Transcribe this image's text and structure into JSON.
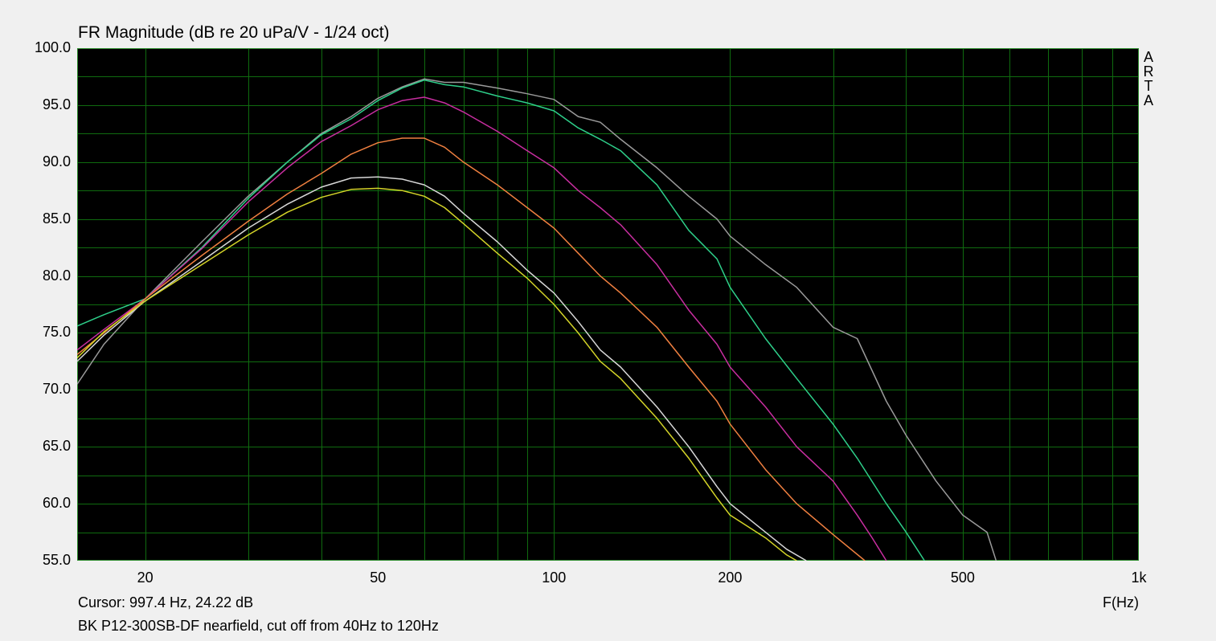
{
  "chart_data": {
    "type": "line",
    "title": "FR Magnitude (dB re 20 uPa/V - 1/24 oct)",
    "xlabel": "F(Hz)",
    "ylabel": "",
    "xscale": "log",
    "xlim": [
      15.3,
      1000
    ],
    "ylim": [
      55,
      100
    ],
    "x_tick_labels": [
      "20",
      "50",
      "100",
      "200",
      "500",
      "1k"
    ],
    "x_tick_values": [
      20,
      50,
      100,
      200,
      500,
      1000
    ],
    "y_tick_labels": [
      "100.0",
      "95.0",
      "90.0",
      "85.0",
      "80.0",
      "75.0",
      "70.0",
      "65.0",
      "60.0",
      "55.0"
    ],
    "y_tick_values": [
      100,
      95,
      90,
      85,
      80,
      75,
      70,
      65,
      60,
      55
    ],
    "grid": true,
    "background": "#000000",
    "grid_color": "#0f6b0f",
    "watermark": "ARTA",
    "series": [
      {
        "color": "#9a9a9a",
        "points": [
          [
            15.3,
            70.5
          ],
          [
            17,
            74
          ],
          [
            20,
            78
          ],
          [
            25,
            83
          ],
          [
            30,
            87
          ],
          [
            35,
            90
          ],
          [
            40,
            92.5
          ],
          [
            45,
            94
          ],
          [
            50,
            95.6
          ],
          [
            55,
            96.6
          ],
          [
            60,
            97.3
          ],
          [
            65,
            97
          ],
          [
            70,
            97
          ],
          [
            80,
            96.5
          ],
          [
            90,
            96
          ],
          [
            100,
            95.5
          ],
          [
            110,
            94
          ],
          [
            120,
            93.5
          ],
          [
            130,
            92
          ],
          [
            150,
            89.5
          ],
          [
            170,
            87
          ],
          [
            190,
            85
          ],
          [
            200,
            83.5
          ],
          [
            230,
            81
          ],
          [
            260,
            79
          ],
          [
            300,
            75.5
          ],
          [
            330,
            74.5
          ],
          [
            370,
            69
          ],
          [
            400,
            66
          ],
          [
            450,
            62
          ],
          [
            500,
            59
          ],
          [
            550,
            57.5
          ],
          [
            570,
            55
          ]
        ]
      },
      {
        "color": "#2ecf8a",
        "points": [
          [
            15.3,
            75.6
          ],
          [
            17,
            76.6
          ],
          [
            20,
            78
          ],
          [
            25,
            82.5
          ],
          [
            30,
            86.8
          ],
          [
            35,
            90
          ],
          [
            40,
            92.4
          ],
          [
            45,
            93.8
          ],
          [
            50,
            95.4
          ],
          [
            55,
            96.5
          ],
          [
            60,
            97.2
          ],
          [
            65,
            96.8
          ],
          [
            70,
            96.6
          ],
          [
            80,
            95.8
          ],
          [
            90,
            95.2
          ],
          [
            100,
            94.5
          ],
          [
            110,
            93
          ],
          [
            120,
            92
          ],
          [
            130,
            91
          ],
          [
            150,
            88
          ],
          [
            170,
            84
          ],
          [
            190,
            81.5
          ],
          [
            200,
            79
          ],
          [
            230,
            74.5
          ],
          [
            260,
            71
          ],
          [
            300,
            67
          ],
          [
            330,
            64
          ],
          [
            370,
            60
          ],
          [
            400,
            57.5
          ],
          [
            430,
            55
          ]
        ]
      },
      {
        "color": "#c82ea0",
        "points": [
          [
            15.3,
            73.5
          ],
          [
            17,
            75.3
          ],
          [
            20,
            78
          ],
          [
            25,
            82.4
          ],
          [
            30,
            86.5
          ],
          [
            35,
            89.5
          ],
          [
            40,
            91.8
          ],
          [
            45,
            93.2
          ],
          [
            50,
            94.6
          ],
          [
            55,
            95.4
          ],
          [
            60,
            95.7
          ],
          [
            65,
            95.2
          ],
          [
            70,
            94.4
          ],
          [
            80,
            92.7
          ],
          [
            90,
            91
          ],
          [
            100,
            89.5
          ],
          [
            110,
            87.5
          ],
          [
            120,
            86
          ],
          [
            130,
            84.5
          ],
          [
            150,
            81
          ],
          [
            170,
            77
          ],
          [
            190,
            74
          ],
          [
            200,
            72
          ],
          [
            230,
            68.5
          ],
          [
            260,
            65
          ],
          [
            300,
            62
          ],
          [
            330,
            59
          ],
          [
            350,
            57
          ],
          [
            370,
            55
          ]
        ]
      },
      {
        "color": "#f08040",
        "points": [
          [
            15.3,
            73.1
          ],
          [
            17,
            75
          ],
          [
            20,
            78
          ],
          [
            25,
            81.8
          ],
          [
            30,
            84.8
          ],
          [
            35,
            87.2
          ],
          [
            40,
            89
          ],
          [
            45,
            90.7
          ],
          [
            50,
            91.7
          ],
          [
            55,
            92.1
          ],
          [
            60,
            92.1
          ],
          [
            65,
            91.3
          ],
          [
            70,
            90
          ],
          [
            80,
            88
          ],
          [
            90,
            86
          ],
          [
            100,
            84.2
          ],
          [
            110,
            82
          ],
          [
            120,
            80
          ],
          [
            130,
            78.5
          ],
          [
            150,
            75.5
          ],
          [
            170,
            72
          ],
          [
            190,
            69
          ],
          [
            200,
            67
          ],
          [
            230,
            63
          ],
          [
            260,
            60
          ],
          [
            300,
            57.3
          ],
          [
            340,
            55
          ]
        ]
      },
      {
        "color": "#d8d8d8",
        "points": [
          [
            15.3,
            72.5
          ],
          [
            17,
            74.8
          ],
          [
            20,
            77.8
          ],
          [
            25,
            81.3
          ],
          [
            30,
            84.2
          ],
          [
            35,
            86.3
          ],
          [
            40,
            87.8
          ],
          [
            45,
            88.6
          ],
          [
            50,
            88.7
          ],
          [
            55,
            88.5
          ],
          [
            60,
            88
          ],
          [
            65,
            87
          ],
          [
            70,
            85.5
          ],
          [
            80,
            83
          ],
          [
            90,
            80.5
          ],
          [
            100,
            78.5
          ],
          [
            110,
            76
          ],
          [
            120,
            73.5
          ],
          [
            130,
            72
          ],
          [
            150,
            68.5
          ],
          [
            170,
            65
          ],
          [
            190,
            61.5
          ],
          [
            200,
            60
          ],
          [
            230,
            57.5
          ],
          [
            250,
            56
          ],
          [
            270,
            55
          ]
        ]
      },
      {
        "color": "#d4d428",
        "points": [
          [
            15.3,
            72.8
          ],
          [
            17,
            75.1
          ],
          [
            20,
            77.8
          ],
          [
            25,
            81
          ],
          [
            30,
            83.6
          ],
          [
            35,
            85.6
          ],
          [
            40,
            86.9
          ],
          [
            45,
            87.6
          ],
          [
            50,
            87.7
          ],
          [
            55,
            87.5
          ],
          [
            60,
            87
          ],
          [
            65,
            86
          ],
          [
            70,
            84.6
          ],
          [
            80,
            82
          ],
          [
            90,
            79.8
          ],
          [
            100,
            77.5
          ],
          [
            110,
            75
          ],
          [
            120,
            72.5
          ],
          [
            130,
            71
          ],
          [
            150,
            67.5
          ],
          [
            170,
            64
          ],
          [
            190,
            60.5
          ],
          [
            200,
            59
          ],
          [
            230,
            57
          ],
          [
            250,
            55.5
          ],
          [
            260,
            55
          ]
        ]
      }
    ]
  },
  "cursor_text": "Cursor: 997.4 Hz, 24.22 dB",
  "caption": "BK P12-300SB-DF nearfield, cut off from 40Hz to 120Hz",
  "arta_letters": [
    "A",
    "R",
    "T",
    "A"
  ]
}
